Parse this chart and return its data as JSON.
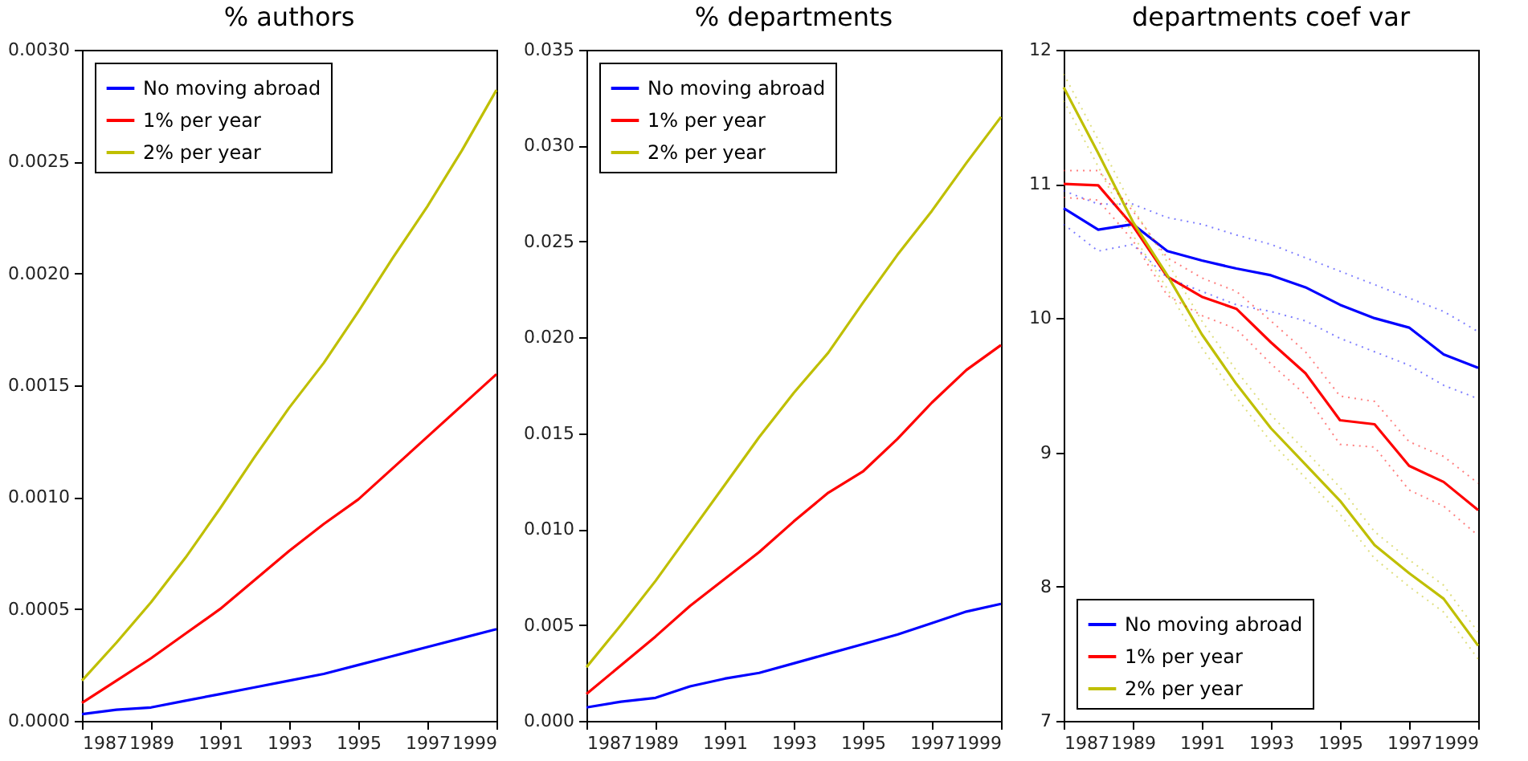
{
  "chart_data": [
    {
      "type": "line",
      "title": "% authors",
      "x": [
        1987,
        1988,
        1989,
        1990,
        1991,
        1992,
        1993,
        1994,
        1995,
        1996,
        1997,
        1998,
        1999
      ],
      "xlim": [
        1987,
        1999
      ],
      "xticks": [
        1987,
        1989,
        1991,
        1993,
        1995,
        1997,
        1999
      ],
      "ylim": [
        0,
        0.003
      ],
      "yticks": [
        {
          "value": 0,
          "label": "0.0000"
        },
        {
          "value": 0.0005,
          "label": "0.0005"
        },
        {
          "value": 0.001,
          "label": "0.0010"
        },
        {
          "value": 0.0015,
          "label": "0.0015"
        },
        {
          "value": 0.002,
          "label": "0.0020"
        },
        {
          "value": 0.0025,
          "label": "0.0025"
        },
        {
          "value": 0.003,
          "label": "0.0030"
        }
      ],
      "legend": "top left",
      "grid": false,
      "series": [
        {
          "name": "No moving abroad",
          "color": "#0000ff",
          "values": [
            3e-05,
            5e-05,
            6e-05,
            9e-05,
            0.00012,
            0.00015,
            0.00018,
            0.00021,
            0.00025,
            0.00029,
            0.00033,
            0.00037,
            0.00041
          ]
        },
        {
          "name": "1% per year",
          "color": "#ff0000",
          "values": [
            8e-05,
            0.00018,
            0.00028,
            0.00039,
            0.0005,
            0.00063,
            0.00076,
            0.00088,
            0.00099,
            0.00113,
            0.00127,
            0.00141,
            0.00155
          ]
        },
        {
          "name": "2% per year",
          "color": "#bfbf00",
          "values": [
            0.00018,
            0.00035,
            0.00053,
            0.00073,
            0.00095,
            0.00118,
            0.0014,
            0.0016,
            0.00183,
            0.00207,
            0.0023,
            0.00255,
            0.00282
          ]
        }
      ]
    },
    {
      "type": "line",
      "title": "% departments",
      "x": [
        1987,
        1988,
        1989,
        1990,
        1991,
        1992,
        1993,
        1994,
        1995,
        1996,
        1997,
        1998,
        1999
      ],
      "xlim": [
        1987,
        1999
      ],
      "xticks": [
        1987,
        1989,
        1991,
        1993,
        1995,
        1997,
        1999
      ],
      "ylim": [
        0,
        0.035
      ],
      "yticks": [
        {
          "value": 0,
          "label": "0.000"
        },
        {
          "value": 0.005,
          "label": "0.005"
        },
        {
          "value": 0.01,
          "label": "0.010"
        },
        {
          "value": 0.015,
          "label": "0.015"
        },
        {
          "value": 0.02,
          "label": "0.020"
        },
        {
          "value": 0.025,
          "label": "0.025"
        },
        {
          "value": 0.03,
          "label": "0.030"
        },
        {
          "value": 0.035,
          "label": "0.035"
        }
      ],
      "legend": "top left",
      "grid": false,
      "series": [
        {
          "name": "No moving abroad",
          "color": "#0000ff",
          "values": [
            0.0007,
            0.001,
            0.0012,
            0.0018,
            0.0022,
            0.0025,
            0.003,
            0.0035,
            0.004,
            0.0045,
            0.0051,
            0.0057,
            0.0061
          ]
        },
        {
          "name": "1% per year",
          "color": "#ff0000",
          "values": [
            0.0014,
            0.0029,
            0.0044,
            0.006,
            0.0074,
            0.0088,
            0.0104,
            0.0119,
            0.013,
            0.0147,
            0.0166,
            0.0183,
            0.0196
          ]
        },
        {
          "name": "2% per year",
          "color": "#bfbf00",
          "values": [
            0.0028,
            0.005,
            0.0073,
            0.0098,
            0.0123,
            0.0148,
            0.0171,
            0.0192,
            0.0218,
            0.0243,
            0.0266,
            0.0291,
            0.0315
          ]
        }
      ]
    },
    {
      "type": "line",
      "title": "departments coef var",
      "x": [
        1987,
        1988,
        1989,
        1990,
        1991,
        1992,
        1993,
        1994,
        1995,
        1996,
        1997,
        1998,
        1999
      ],
      "xlim": [
        1987,
        1999
      ],
      "xticks": [
        1987,
        1989,
        1991,
        1993,
        1995,
        1997,
        1999
      ],
      "ylim": [
        7,
        12
      ],
      "yticks": [
        7,
        8,
        9,
        10,
        11,
        12
      ],
      "legend": "bottom left",
      "grid": false,
      "series": [
        {
          "name": "No moving abroad",
          "color": "#0000ff",
          "values": [
            10.82,
            10.66,
            10.7,
            10.5,
            10.43,
            10.37,
            10.32,
            10.23,
            10.1,
            10.0,
            9.93,
            9.73,
            9.63
          ]
        },
        {
          "name": "1% per year",
          "color": "#ff0000",
          "values": [
            11.0,
            10.99,
            10.69,
            10.31,
            10.16,
            10.07,
            9.82,
            9.59,
            9.24,
            9.21,
            8.9,
            8.78,
            8.57
          ]
        },
        {
          "name": "2% per year",
          "color": "#bfbf00",
          "values": [
            11.72,
            11.23,
            10.72,
            10.32,
            9.88,
            9.51,
            9.18,
            8.91,
            8.64,
            8.31,
            8.1,
            7.91,
            7.56
          ]
        },
        {
          "type": "line",
          "line_style": "dotted",
          "color": "#0000ff",
          "values": [
            10.7,
            10.5,
            10.55,
            10.3,
            10.2,
            10.1,
            10.05,
            9.98,
            9.85,
            9.75,
            9.65,
            9.5,
            9.4
          ]
        },
        {
          "type": "line",
          "line_style": "dotted",
          "color": "#0000ff",
          "values": [
            10.95,
            10.85,
            10.85,
            10.75,
            10.7,
            10.62,
            10.55,
            10.45,
            10.35,
            10.25,
            10.15,
            10.05,
            9.9
          ]
        },
        {
          "type": "line",
          "line_style": "dotted",
          "color": "#ff0000",
          "values": [
            10.9,
            10.88,
            10.58,
            10.17,
            10.02,
            9.92,
            9.66,
            9.43,
            9.06,
            9.04,
            8.72,
            8.6,
            8.38
          ]
        },
        {
          "type": "line",
          "line_style": "dotted",
          "color": "#ff0000",
          "values": [
            11.1,
            11.1,
            10.8,
            10.45,
            10.3,
            10.2,
            9.98,
            9.75,
            9.42,
            9.38,
            9.08,
            8.97,
            8.77
          ]
        },
        {
          "type": "line",
          "line_style": "dotted",
          "color": "#bfbf00",
          "values": [
            11.62,
            11.13,
            10.62,
            10.22,
            9.78,
            9.41,
            9.08,
            8.81,
            8.54,
            8.21,
            8.0,
            7.81,
            7.46
          ]
        },
        {
          "type": "line",
          "line_style": "dotted",
          "color": "#bfbf00",
          "values": [
            11.82,
            11.33,
            10.82,
            10.42,
            9.98,
            9.61,
            9.28,
            9.01,
            8.74,
            8.41,
            8.2,
            8.01,
            7.66
          ]
        }
      ]
    }
  ]
}
